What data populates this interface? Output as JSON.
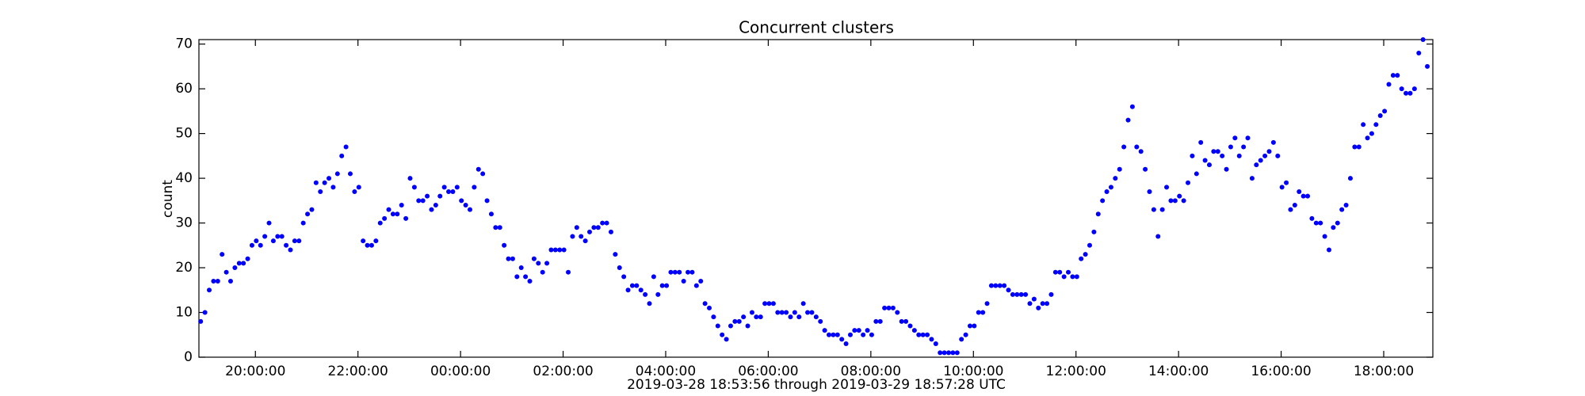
{
  "chart_data": {
    "type": "scatter",
    "title": "Concurrent clusters",
    "ylabel": "count",
    "xlabel": "2019-03-28 18:53:56 through 2019-03-29 18:57:28 UTC",
    "color": "#0000ff",
    "xlim": [
      "2019-03-28T18:53:56",
      "2019-03-29T18:57:28"
    ],
    "xticks": [
      {
        "value": "2019-03-28T20:00:00",
        "label": "20:00:00"
      },
      {
        "value": "2019-03-28T22:00:00",
        "label": "22:00:00"
      },
      {
        "value": "2019-03-29T00:00:00",
        "label": "00:00:00"
      },
      {
        "value": "2019-03-29T02:00:00",
        "label": "02:00:00"
      },
      {
        "value": "2019-03-29T04:00:00",
        "label": "04:00:00"
      },
      {
        "value": "2019-03-29T06:00:00",
        "label": "06:00:00"
      },
      {
        "value": "2019-03-29T08:00:00",
        "label": "08:00:00"
      },
      {
        "value": "2019-03-29T10:00:00",
        "label": "10:00:00"
      },
      {
        "value": "2019-03-29T12:00:00",
        "label": "12:00:00"
      },
      {
        "value": "2019-03-29T14:00:00",
        "label": "14:00:00"
      },
      {
        "value": "2019-03-29T16:00:00",
        "label": "16:00:00"
      },
      {
        "value": "2019-03-29T18:00:00",
        "label": "18:00:00"
      }
    ],
    "ylim": [
      0,
      71
    ],
    "yticks": [
      0,
      10,
      20,
      30,
      40,
      50,
      60,
      70
    ],
    "x": [
      "2019-03-28T18:56",
      "2019-03-28T19:01",
      "2019-03-28T19:06",
      "2019-03-28T19:11",
      "2019-03-28T19:16",
      "2019-03-28T19:21",
      "2019-03-28T19:26",
      "2019-03-28T19:31",
      "2019-03-28T19:36",
      "2019-03-28T19:41",
      "2019-03-28T19:46",
      "2019-03-28T19:51",
      "2019-03-28T19:56",
      "2019-03-28T20:01",
      "2019-03-28T20:06",
      "2019-03-28T20:11",
      "2019-03-28T20:16",
      "2019-03-28T20:21",
      "2019-03-28T20:26",
      "2019-03-28T20:31",
      "2019-03-28T20:36",
      "2019-03-28T20:41",
      "2019-03-28T20:46",
      "2019-03-28T20:51",
      "2019-03-28T20:56",
      "2019-03-28T21:01",
      "2019-03-28T21:06",
      "2019-03-28T21:11",
      "2019-03-28T21:16",
      "2019-03-28T21:21",
      "2019-03-28T21:26",
      "2019-03-28T21:31",
      "2019-03-28T21:36",
      "2019-03-28T21:41",
      "2019-03-28T21:46",
      "2019-03-28T21:51",
      "2019-03-28T21:56",
      "2019-03-28T22:01",
      "2019-03-28T22:06",
      "2019-03-28T22:11",
      "2019-03-28T22:16",
      "2019-03-28T22:21",
      "2019-03-28T22:26",
      "2019-03-28T22:31",
      "2019-03-28T22:36",
      "2019-03-28T22:41",
      "2019-03-28T22:46",
      "2019-03-28T22:51",
      "2019-03-28T22:56",
      "2019-03-28T23:01",
      "2019-03-28T23:06",
      "2019-03-28T23:11",
      "2019-03-28T23:16",
      "2019-03-28T23:21",
      "2019-03-28T23:26",
      "2019-03-28T23:31",
      "2019-03-28T23:36",
      "2019-03-28T23:41",
      "2019-03-28T23:46",
      "2019-03-28T23:51",
      "2019-03-28T23:56",
      "2019-03-29T00:01",
      "2019-03-29T00:06",
      "2019-03-29T00:11",
      "2019-03-29T00:16",
      "2019-03-29T00:21",
      "2019-03-29T00:26",
      "2019-03-29T00:31",
      "2019-03-29T00:36",
      "2019-03-29T00:41",
      "2019-03-29T00:46",
      "2019-03-29T00:51",
      "2019-03-29T00:56",
      "2019-03-29T01:01",
      "2019-03-29T01:06",
      "2019-03-29T01:11",
      "2019-03-29T01:16",
      "2019-03-29T01:21",
      "2019-03-29T01:26",
      "2019-03-29T01:31",
      "2019-03-29T01:36",
      "2019-03-29T01:41",
      "2019-03-29T01:46",
      "2019-03-29T01:51",
      "2019-03-29T01:56",
      "2019-03-29T02:01",
      "2019-03-29T02:06",
      "2019-03-29T02:11",
      "2019-03-29T02:16",
      "2019-03-29T02:21",
      "2019-03-29T02:26",
      "2019-03-29T02:31",
      "2019-03-29T02:36",
      "2019-03-29T02:41",
      "2019-03-29T02:46",
      "2019-03-29T02:51",
      "2019-03-29T02:56",
      "2019-03-29T03:01",
      "2019-03-29T03:06",
      "2019-03-29T03:11",
      "2019-03-29T03:16",
      "2019-03-29T03:21",
      "2019-03-29T03:26",
      "2019-03-29T03:31",
      "2019-03-29T03:36",
      "2019-03-29T03:41",
      "2019-03-29T03:46",
      "2019-03-29T03:51",
      "2019-03-29T03:56",
      "2019-03-29T04:01",
      "2019-03-29T04:06",
      "2019-03-29T04:11",
      "2019-03-29T04:16",
      "2019-03-29T04:21",
      "2019-03-29T04:26",
      "2019-03-29T04:31",
      "2019-03-29T04:36",
      "2019-03-29T04:41",
      "2019-03-29T04:46",
      "2019-03-29T04:51",
      "2019-03-29T04:56",
      "2019-03-29T05:01",
      "2019-03-29T05:06",
      "2019-03-29T05:11",
      "2019-03-29T05:16",
      "2019-03-29T05:21",
      "2019-03-29T05:26",
      "2019-03-29T05:31",
      "2019-03-29T05:36",
      "2019-03-29T05:41",
      "2019-03-29T05:46",
      "2019-03-29T05:51",
      "2019-03-29T05:56",
      "2019-03-29T06:01",
      "2019-03-29T06:06",
      "2019-03-29T06:11",
      "2019-03-29T06:16",
      "2019-03-29T06:21",
      "2019-03-29T06:26",
      "2019-03-29T06:31",
      "2019-03-29T06:36",
      "2019-03-29T06:41",
      "2019-03-29T06:46",
      "2019-03-29T06:51",
      "2019-03-29T06:56",
      "2019-03-29T07:01",
      "2019-03-29T07:06",
      "2019-03-29T07:11",
      "2019-03-29T07:16",
      "2019-03-29T07:21",
      "2019-03-29T07:26",
      "2019-03-29T07:31",
      "2019-03-29T07:36",
      "2019-03-29T07:41",
      "2019-03-29T07:46",
      "2019-03-29T07:51",
      "2019-03-29T07:56",
      "2019-03-29T08:01",
      "2019-03-29T08:06",
      "2019-03-29T08:11",
      "2019-03-29T08:16",
      "2019-03-29T08:21",
      "2019-03-29T08:26",
      "2019-03-29T08:31",
      "2019-03-29T08:36",
      "2019-03-29T08:41",
      "2019-03-29T08:46",
      "2019-03-29T08:51",
      "2019-03-29T08:56",
      "2019-03-29T09:01",
      "2019-03-29T09:06",
      "2019-03-29T09:11",
      "2019-03-29T09:16",
      "2019-03-29T09:21",
      "2019-03-29T09:26",
      "2019-03-29T09:31",
      "2019-03-29T09:36",
      "2019-03-29T09:41",
      "2019-03-29T09:46",
      "2019-03-29T09:51",
      "2019-03-29T09:56",
      "2019-03-29T10:01",
      "2019-03-29T10:06",
      "2019-03-29T10:11",
      "2019-03-29T10:16",
      "2019-03-29T10:21",
      "2019-03-29T10:26",
      "2019-03-29T10:31",
      "2019-03-29T10:36",
      "2019-03-29T10:41",
      "2019-03-29T10:46",
      "2019-03-29T10:51",
      "2019-03-29T10:56",
      "2019-03-29T11:01",
      "2019-03-29T11:06",
      "2019-03-29T11:11",
      "2019-03-29T11:16",
      "2019-03-29T11:21",
      "2019-03-29T11:26",
      "2019-03-29T11:31",
      "2019-03-29T11:36",
      "2019-03-29T11:41",
      "2019-03-29T11:46",
      "2019-03-29T11:51",
      "2019-03-29T11:56",
      "2019-03-29T12:01",
      "2019-03-29T12:06",
      "2019-03-29T12:11",
      "2019-03-29T12:16",
      "2019-03-29T12:21",
      "2019-03-29T12:26",
      "2019-03-29T12:31",
      "2019-03-29T12:36",
      "2019-03-29T12:41",
      "2019-03-29T12:46",
      "2019-03-29T12:51",
      "2019-03-29T12:56",
      "2019-03-29T13:01",
      "2019-03-29T13:06",
      "2019-03-29T13:11",
      "2019-03-29T13:16",
      "2019-03-29T13:21",
      "2019-03-29T13:26",
      "2019-03-29T13:31",
      "2019-03-29T13:36",
      "2019-03-29T13:41",
      "2019-03-29T13:46",
      "2019-03-29T13:51",
      "2019-03-29T13:56",
      "2019-03-29T14:01",
      "2019-03-29T14:06",
      "2019-03-29T14:11",
      "2019-03-29T14:16",
      "2019-03-29T14:21",
      "2019-03-29T14:26",
      "2019-03-29T14:31",
      "2019-03-29T14:36",
      "2019-03-29T14:41",
      "2019-03-29T14:46",
      "2019-03-29T14:51",
      "2019-03-29T14:56",
      "2019-03-29T15:01",
      "2019-03-29T15:06",
      "2019-03-29T15:11",
      "2019-03-29T15:16",
      "2019-03-29T15:21",
      "2019-03-29T15:26",
      "2019-03-29T15:31",
      "2019-03-29T15:36",
      "2019-03-29T15:41",
      "2019-03-29T15:46",
      "2019-03-29T15:51",
      "2019-03-29T15:56",
      "2019-03-29T16:01",
      "2019-03-29T16:06",
      "2019-03-29T16:11",
      "2019-03-29T16:16",
      "2019-03-29T16:21",
      "2019-03-29T16:26",
      "2019-03-29T16:31",
      "2019-03-29T16:36",
      "2019-03-29T16:41",
      "2019-03-29T16:46",
      "2019-03-29T16:51",
      "2019-03-29T16:56",
      "2019-03-29T17:01",
      "2019-03-29T17:06",
      "2019-03-29T17:11",
      "2019-03-29T17:16",
      "2019-03-29T17:21",
      "2019-03-29T17:26",
      "2019-03-29T17:31",
      "2019-03-29T17:36",
      "2019-03-29T17:41",
      "2019-03-29T17:46",
      "2019-03-29T17:51",
      "2019-03-29T17:56",
      "2019-03-29T18:01",
      "2019-03-29T18:06",
      "2019-03-29T18:11",
      "2019-03-29T18:16",
      "2019-03-29T18:21",
      "2019-03-29T18:26",
      "2019-03-29T18:31",
      "2019-03-29T18:36",
      "2019-03-29T18:41",
      "2019-03-29T18:46",
      "2019-03-29T18:51"
    ],
    "values": [
      8,
      10,
      15,
      17,
      17,
      23,
      19,
      17,
      20,
      21,
      21,
      22,
      25,
      26,
      25,
      27,
      30,
      26,
      27,
      27,
      25,
      24,
      26,
      26,
      30,
      32,
      33,
      39,
      37,
      39,
      40,
      38,
      41,
      45,
      47,
      41,
      37,
      38,
      26,
      25,
      25,
      26,
      30,
      31,
      33,
      32,
      32,
      34,
      31,
      40,
      38,
      35,
      35,
      36,
      33,
      34,
      36,
      38,
      37,
      37,
      38,
      35,
      34,
      33,
      38,
      42,
      41,
      35,
      32,
      29,
      29,
      25,
      22,
      22,
      18,
      20,
      18,
      17,
      22,
      21,
      19,
      21,
      24,
      24,
      24,
      24,
      19,
      27,
      29,
      27,
      26,
      28,
      29,
      29,
      30,
      30,
      28,
      23,
      20,
      18,
      15,
      16,
      16,
      15,
      14,
      12,
      18,
      14,
      16,
      16,
      19,
      19,
      19,
      17,
      19,
      19,
      16,
      17,
      12,
      11,
      9,
      7,
      5,
      4,
      7,
      8,
      8,
      9,
      7,
      10,
      9,
      9,
      12,
      12,
      12,
      10,
      10,
      10,
      9,
      10,
      9,
      12,
      10,
      10,
      9,
      8,
      6,
      5,
      5,
      5,
      4,
      3,
      5,
      6,
      6,
      5,
      6,
      5,
      8,
      8,
      11,
      11,
      11,
      10,
      8,
      8,
      7,
      6,
      5,
      5,
      5,
      4,
      3,
      1,
      1,
      1,
      1,
      1,
      4,
      5,
      7,
      7,
      10,
      10,
      12,
      16,
      16,
      16,
      16,
      15,
      14,
      14,
      14,
      14,
      12,
      13,
      11,
      12,
      12,
      14,
      19,
      19,
      18,
      19,
      18,
      18,
      22,
      23,
      25,
      28,
      32,
      35,
      37,
      38,
      40,
      42,
      47,
      53,
      56,
      47,
      46,
      42,
      37,
      33,
      27,
      33,
      38,
      35,
      35,
      36,
      35,
      39,
      45,
      41,
      48,
      44,
      43,
      46,
      46,
      45,
      42,
      47,
      49,
      45,
      47,
      49,
      40,
      43,
      44,
      45,
      46,
      48,
      45,
      38,
      39,
      33,
      34,
      37,
      36,
      36,
      31,
      30,
      30,
      27,
      24,
      29,
      30,
      33,
      34,
      40,
      47,
      47,
      52,
      49,
      50,
      52,
      54,
      55,
      61,
      63,
      63,
      60,
      59,
      59,
      60,
      68,
      71,
      65
    ]
  }
}
